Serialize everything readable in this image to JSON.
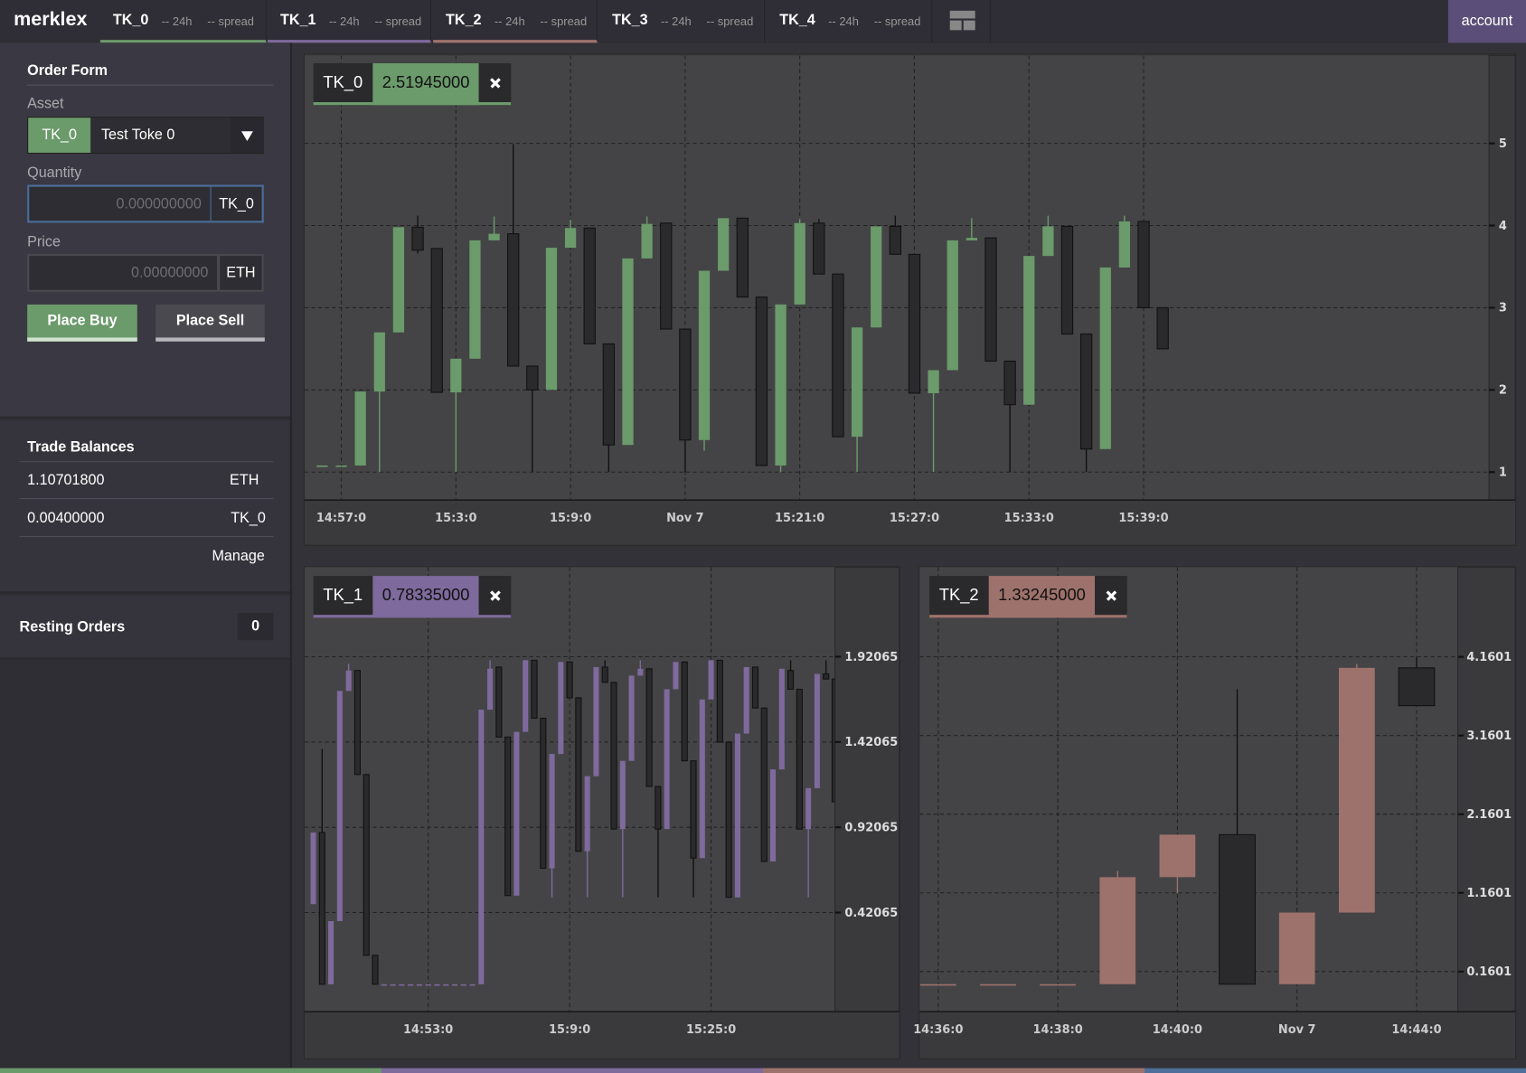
{
  "nav": {
    "brand": "merklex",
    "tabs": [
      {
        "symbol": "TK_0",
        "change": "-- 24h",
        "spread": "-- spread",
        "color": "#6b9a6b"
      },
      {
        "symbol": "TK_1",
        "change": "-- 24h",
        "spread": "-- spread",
        "color": "#7e6a9c"
      },
      {
        "symbol": "TK_2",
        "change": "-- 24h",
        "spread": "-- spread",
        "color": "#9e726c"
      },
      {
        "symbol": "TK_3",
        "change": "-- 24h",
        "spread": "-- spread"
      },
      {
        "symbol": "TK_4",
        "change": "-- 24h",
        "spread": "-- spread"
      }
    ],
    "account": "account"
  },
  "order_form": {
    "title": "Order Form",
    "asset_label": "Asset",
    "asset_symbol": "TK_0",
    "asset_name": "Test Toke 0",
    "quantity_label": "Quantity",
    "quantity_placeholder": "0.000000000",
    "quantity_unit": "TK_0",
    "price_label": "Price",
    "price_placeholder": "0.00000000",
    "price_unit": "ETH",
    "buy": "Place Buy",
    "sell": "Place Sell"
  },
  "balances": {
    "title": "Trade Balances",
    "rows": [
      [
        "1.10701800",
        "ETH"
      ],
      [
        "0.00400000",
        "TK_0"
      ]
    ],
    "manage": "Manage"
  },
  "resting_orders": {
    "title": "Resting Orders",
    "count": 0
  },
  "chart_data": [
    {
      "type": "candlestick",
      "title": "TK_0",
      "last_price": "2.51945000",
      "up_color": "#6b9a6b",
      "down_color": "#2a2a2c",
      "grid": true,
      "categories": [
        null,
        "14:57:0",
        null,
        null,
        null,
        null,
        null,
        "15:3:0",
        null,
        null,
        null,
        null,
        null,
        "15:9:0",
        null,
        null,
        null,
        null,
        null,
        "Nov 7",
        null,
        null,
        null,
        null,
        null,
        "15:21:0",
        null,
        null,
        null,
        null,
        null,
        "15:27:0",
        null,
        null,
        null,
        null,
        null,
        "15:33:0",
        null,
        null,
        null,
        null,
        null,
        "15:39:0",
        null
      ],
      "open": [
        1.07,
        1.07,
        1.08,
        1.98,
        2.7,
        3.98,
        3.72,
        1.97,
        2.38,
        3.82,
        3.9,
        2.29,
        2.0,
        3.73,
        3.97,
        2.56,
        1.33,
        3.6,
        4.03,
        2.74,
        1.39,
        3.45,
        4.09,
        3.13,
        1.08,
        3.04,
        4.03,
        3.41,
        1.43,
        2.76,
        3.99,
        3.65,
        1.96,
        2.24,
        3.82,
        3.85,
        2.35,
        1.82,
        3.63,
        3.99,
        2.68,
        1.28,
        3.49,
        4.05,
        3.0
      ],
      "high": [
        1.08,
        1.08,
        1.98,
        2.7,
        3.98,
        4.12,
        3.72,
        2.38,
        3.82,
        4.11,
        4.99,
        2.29,
        3.73,
        4.07,
        3.97,
        2.56,
        3.6,
        4.11,
        4.03,
        2.74,
        3.45,
        4.09,
        4.09,
        3.13,
        3.04,
        4.08,
        4.08,
        3.41,
        2.76,
        3.99,
        4.12,
        3.65,
        2.24,
        3.82,
        4.09,
        3.85,
        2.35,
        3.63,
        4.12,
        3.99,
        2.68,
        3.49,
        4.12,
        4.05,
        3.0
      ],
      "low": [
        1.07,
        1.07,
        1.08,
        1.0,
        2.7,
        3.66,
        1.97,
        1.0,
        2.38,
        3.82,
        2.29,
        1.0,
        2.0,
        3.73,
        2.56,
        1.0,
        1.33,
        3.6,
        2.74,
        1.0,
        1.26,
        3.45,
        3.13,
        1.08,
        1.0,
        3.04,
        3.41,
        1.43,
        1.0,
        2.76,
        3.65,
        1.96,
        1.0,
        2.24,
        3.82,
        2.35,
        1.0,
        1.82,
        3.63,
        2.68,
        1.0,
        1.28,
        3.49,
        3.0,
        2.5
      ],
      "close": [
        1.08,
        1.08,
        1.98,
        2.7,
        3.98,
        3.7,
        1.97,
        2.38,
        3.82,
        3.9,
        2.29,
        2.0,
        3.73,
        3.97,
        2.56,
        1.33,
        3.6,
        4.02,
        2.74,
        1.39,
        3.45,
        4.09,
        3.13,
        1.08,
        3.04,
        4.03,
        3.41,
        1.43,
        2.76,
        3.99,
        3.65,
        1.96,
        2.24,
        3.82,
        3.85,
        2.35,
        1.82,
        3.63,
        3.99,
        2.68,
        1.28,
        3.49,
        4.05,
        3.0,
        2.5
      ],
      "ylim": [
        0.66,
        6.07
      ],
      "yticks": [
        1,
        2,
        3,
        4,
        5
      ]
    },
    {
      "type": "candlestick",
      "title": "TK_1",
      "last_price": "0.78335000",
      "up_color": "#7e6a9c",
      "down_color": "#2a2a2c",
      "grid": true,
      "categories": [
        null,
        null,
        null,
        null,
        null,
        null,
        null,
        null,
        null,
        null,
        null,
        null,
        null,
        "14:53:0",
        null,
        null,
        null,
        null,
        null,
        null,
        null,
        null,
        null,
        null,
        null,
        null,
        null,
        null,
        null,
        "15:9:0",
        null,
        null,
        null,
        null,
        null,
        null,
        null,
        null,
        null,
        null,
        null,
        null,
        null,
        null,
        null,
        "15:25:0",
        null,
        null,
        null,
        null,
        null,
        null,
        null,
        null,
        null,
        null,
        null,
        null,
        null,
        null
      ],
      "open": [
        0.47,
        0.89,
        0,
        0.37,
        1.72,
        1.84,
        1.23,
        0.17,
        0,
        0,
        0,
        0,
        0,
        0,
        0,
        0,
        0,
        0,
        0,
        0,
        1.61,
        1.86,
        1.45,
        0.52,
        1.48,
        1.9,
        1.56,
        0.68,
        1.35,
        1.89,
        1.68,
        0.78,
        1.22,
        1.86,
        1.77,
        0.91,
        1.31,
        1.81,
        1.85,
        1.16,
        0.91,
        1.73,
        1.89,
        1.31,
        0.74,
        1.67,
        1.9,
        1.42,
        0.51,
        1.47,
        1.86,
        1.62,
        0.72,
        1.26,
        1.84,
        1.73,
        0.91,
        1.15,
        1.82,
        1.79
      ],
      "high": [
        0.89,
        1.38,
        0.37,
        1.72,
        1.88,
        1.84,
        1.23,
        0.17,
        0,
        0,
        0,
        0,
        0,
        0,
        0,
        0,
        0,
        0,
        0,
        1.61,
        1.9,
        1.86,
        1.45,
        1.48,
        1.9,
        1.9,
        1.56,
        1.35,
        1.89,
        1.89,
        1.68,
        1.22,
        1.86,
        1.9,
        1.77,
        1.31,
        1.81,
        1.9,
        1.85,
        1.16,
        1.73,
        1.89,
        1.89,
        1.31,
        1.67,
        1.9,
        1.9,
        1.42,
        1.47,
        1.86,
        1.86,
        1.62,
        1.26,
        1.85,
        1.9,
        1.73,
        1.15,
        1.82,
        1.9,
        1.79
      ],
      "low": [
        0.47,
        0,
        0,
        0.37,
        1.72,
        1.23,
        0.17,
        0,
        0,
        0,
        0,
        0,
        0,
        0,
        0,
        0,
        0,
        0,
        0,
        0,
        1.61,
        1.45,
        0.52,
        0.52,
        1.48,
        1.56,
        0.68,
        0.51,
        1.35,
        1.68,
        0.78,
        0.51,
        1.22,
        1.77,
        0.91,
        0.51,
        1.31,
        1.81,
        1.16,
        0.51,
        0.91,
        1.73,
        1.31,
        0.51,
        0.74,
        1.67,
        1.42,
        0.51,
        0.51,
        1.47,
        1.62,
        0.72,
        0.72,
        1.26,
        1.73,
        0.91,
        0.51,
        1.15,
        1.79,
        1.07
      ],
      "close": [
        0.89,
        0,
        0.37,
        1.72,
        1.84,
        1.23,
        0.17,
        0,
        0,
        0,
        0,
        0,
        0,
        0,
        0,
        0,
        0,
        0,
        0,
        1.61,
        1.85,
        1.45,
        0.52,
        1.48,
        1.9,
        1.56,
        0.68,
        1.35,
        1.89,
        1.68,
        0.78,
        1.22,
        1.86,
        1.77,
        0.91,
        1.31,
        1.81,
        1.85,
        1.16,
        0.91,
        1.73,
        1.89,
        1.31,
        0.74,
        1.67,
        1.9,
        1.42,
        0.51,
        1.47,
        1.86,
        1.62,
        0.72,
        1.26,
        1.85,
        1.73,
        0.91,
        1.15,
        1.82,
        1.79,
        1.07
      ],
      "ylim": [
        -0.161,
        2.446
      ],
      "yticks": [
        0.42065,
        0.92065,
        1.42065,
        1.92065
      ]
    },
    {
      "type": "candlestick",
      "title": "TK_2",
      "last_price": "1.33245000",
      "up_color": "#9e726c",
      "down_color": "#2a2a2c",
      "grid": true,
      "categories": [
        "14:36:0",
        null,
        "14:38:0",
        null,
        "14:40:0",
        null,
        "Nov 7",
        null,
        "14:44:0"
      ],
      "open": [
        0,
        0,
        0,
        0,
        1.36,
        1.9,
        0,
        0.91,
        4.02
      ],
      "high": [
        0,
        0,
        0,
        1.44,
        1.9,
        3.75,
        0.91,
        4.07,
        4.15
      ],
      "low": [
        0,
        0,
        0,
        0,
        1.16,
        0,
        0,
        0.91,
        3.54
      ],
      "close": [
        0,
        0,
        0,
        1.36,
        1.9,
        0,
        0.91,
        4.02,
        3.54
      ],
      "ylim": [
        -0.35,
        5.3
      ],
      "yticks": [
        0.1601,
        1.1601,
        2.1601,
        3.1601,
        4.1601
      ]
    }
  ]
}
